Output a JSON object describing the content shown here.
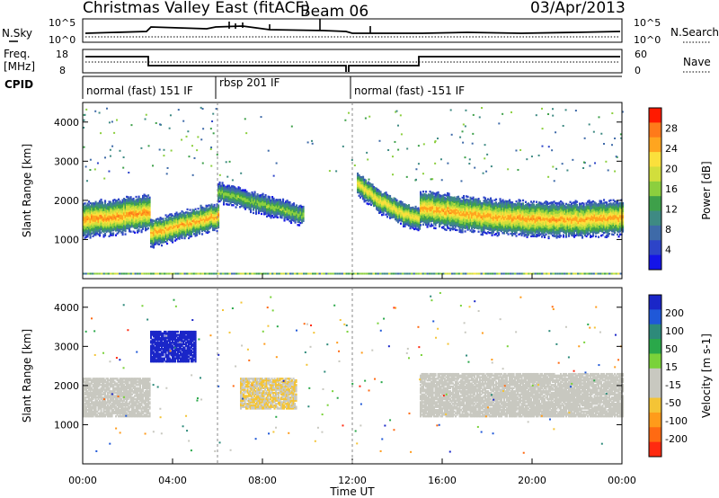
{
  "header": {
    "station": "Christmas Valley East (fitACF)",
    "beam": "Beam 06",
    "date": "03/Apr/2013"
  },
  "panels": {
    "nsky_label": "N.Sky",
    "nsearch_label": "N.Search",
    "nsky_ticks": [
      "10^5",
      "10^0"
    ],
    "nsearch_ticks": [
      "10^5",
      "10^0"
    ],
    "freq_label_1": "Freq.",
    "freq_label_2": "[MHz]",
    "freq_ticks": [
      "18",
      "8"
    ],
    "nave_label": "Nave",
    "nave_ticks": [
      "60",
      "0"
    ],
    "cpid_label": "CPID",
    "cpid_segments": [
      {
        "label": "normal (fast) 151 IF",
        "start_hour": 0,
        "end_hour": 6
      },
      {
        "label": "rbsp 201 IF",
        "start_hour": 6,
        "end_hour": 12
      },
      {
        "label": "normal (fast) -151 IF",
        "start_hour": 12,
        "end_hour": 24
      }
    ]
  },
  "axes": {
    "ylabel": "Slant Range [km]",
    "xlabel": "Time UT",
    "yticks": [
      "1000",
      "2000",
      "3000",
      "4000"
    ],
    "xticks": [
      "00:00",
      "04:00",
      "08:00",
      "12:00",
      "16:00",
      "20:00",
      "00:00"
    ]
  },
  "power_scale": {
    "label": "Power [dB]",
    "ticks": [
      "28",
      "24",
      "20",
      "16",
      "12",
      "8",
      "4"
    ],
    "colors": [
      "#ff1a00",
      "#ff7a1a",
      "#ffa51f",
      "#fbe03c",
      "#d2de3c",
      "#8ccf3e",
      "#3ea04a",
      "#3e8a83",
      "#3e6aa8",
      "#2d44c8",
      "#1414e8"
    ]
  },
  "velocity_scale": {
    "label": "Velocity [m s-1]",
    "ticks": [
      "200",
      "100",
      "50",
      "15",
      "-15",
      "-50",
      "-100",
      "-200"
    ],
    "colors": [
      "#1a26c8",
      "#1f58d8",
      "#2d8a7a",
      "#2aa84a",
      "#7ad23a",
      "#c8c8c0",
      "#c8c8c0",
      "#f4c436",
      "#ff9b1a",
      "#ff6a12",
      "#ff2a10"
    ]
  },
  "chart_data": [
    {
      "type": "heatmap",
      "title": "Power [dB]",
      "xlabel": "Time UT",
      "ylabel": "Slant Range [km]",
      "xlim_hours": [
        0,
        24
      ],
      "ylim_km": [
        0,
        4500
      ],
      "color_range_db": [
        0,
        30
      ],
      "bands": [
        {
          "t_start": 0.0,
          "t_end": 3.0,
          "center_km": [
            1500,
            1550,
            1620,
            1700
          ],
          "width_km": 900,
          "peak_db": 26
        },
        {
          "t_start": 3.0,
          "t_end": 6.0,
          "center_km": [
            1150,
            1300,
            1450,
            1600
          ],
          "width_km": 700,
          "peak_db": 25
        },
        {
          "t_start": 6.0,
          "t_end": 9.8,
          "center_km": [
            2200,
            2000,
            1800,
            1600
          ],
          "width_km": 500,
          "peak_db": 16
        },
        {
          "t_start": 12.2,
          "t_end": 15.0,
          "center_km": [
            2400,
            2000,
            1700,
            1500
          ],
          "width_km": 600,
          "peak_db": 22
        },
        {
          "t_start": 15.0,
          "t_end": 24.0,
          "center_km": [
            1800,
            1650,
            1550,
            1500,
            1500,
            1550
          ],
          "width_km": 900,
          "peak_db": 25
        }
      ]
    },
    {
      "type": "heatmap",
      "title": "Velocity [m s-1]",
      "xlabel": "Time UT",
      "ylabel": "Slant Range [km]",
      "xlim_hours": [
        0,
        24
      ],
      "ylim_km": [
        0,
        4500
      ],
      "color_range_ms": [
        -200,
        200
      ],
      "regions": [
        {
          "t_start": 0.0,
          "t_end": 3.0,
          "range_km": [
            1200,
            2200
          ],
          "velocity_ms": 0
        },
        {
          "t_start": 3.0,
          "t_end": 5.0,
          "range_km": [
            2600,
            3400
          ],
          "velocity_ms": 210
        },
        {
          "t_start": 7.0,
          "t_end": 9.5,
          "range_km": [
            1400,
            2200
          ],
          "velocity_ms": -60
        },
        {
          "t_start": 15.0,
          "t_end": 24.0,
          "range_km": [
            1200,
            2300
          ],
          "velocity_ms": 0
        }
      ]
    }
  ]
}
